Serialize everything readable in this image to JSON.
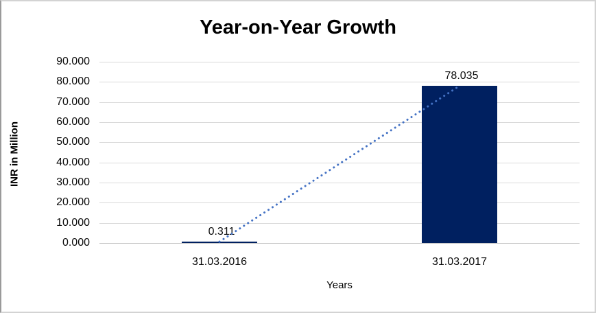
{
  "chart_data": {
    "type": "bar",
    "title": "Year-on-Year Growth",
    "xlabel": "Years",
    "ylabel": "INR in Million",
    "categories": [
      "31.03.2016",
      "31.03.2017"
    ],
    "series": [
      {
        "name": "INR in Million",
        "values": [
          0.311,
          78.035
        ]
      }
    ],
    "data_labels": [
      "0.311",
      "78.035"
    ],
    "yticks": [
      "0.000",
      "10.000",
      "20.000",
      "30.000",
      "40.000",
      "50.000",
      "60.000",
      "70.000",
      "80.000",
      "90.000"
    ],
    "ylim": [
      0,
      90
    ],
    "grid": true,
    "legend_position": "none",
    "bar_color": "#002060",
    "gridline_color": "#D9D9D9",
    "text_color": "#000000",
    "background_color": "#FFFFFF",
    "trendline": {
      "type": "linear",
      "style": "dotted",
      "color": "#4472C4",
      "from_value": 0.311,
      "to_value": 78.035
    }
  }
}
